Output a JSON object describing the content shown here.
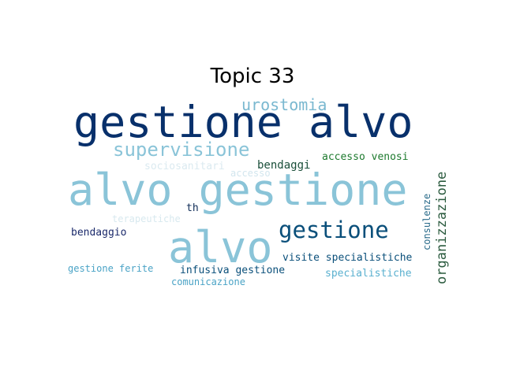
{
  "title": "Topic 33",
  "words": [
    {
      "text": "gestione alvo",
      "color": "#08306b"
    },
    {
      "text": "alvo gestione",
      "color": "#8ac4d8"
    },
    {
      "text": "alvo",
      "color": "#8ac4d8"
    },
    {
      "text": "gestione",
      "color": "#0a4f7a"
    },
    {
      "text": "supervisione",
      "color": "#8ac4d8"
    },
    {
      "text": "urostomia",
      "color": "#7ab8d0"
    },
    {
      "text": "organizzazione",
      "color": "#2b5b3f"
    },
    {
      "text": "accesso venosi",
      "color": "#1d7a2e"
    },
    {
      "text": "bendaggi",
      "color": "#1a4f3a"
    },
    {
      "text": "sociosanitari",
      "color": "#dbeaf0"
    },
    {
      "text": "accesso",
      "color": "#d2e6ee"
    },
    {
      "text": "consulenze",
      "color": "#2a6b8a"
    },
    {
      "text": "th",
      "color": "#0d2a55"
    },
    {
      "text": "terapeutiche",
      "color": "#d8e9ef"
    },
    {
      "text": "bendaggio",
      "color": "#1b2a6b"
    },
    {
      "text": "visite specialistiche",
      "color": "#0a4f7a"
    },
    {
      "text": "gestione ferite",
      "color": "#4aa3c6"
    },
    {
      "text": "infusiva gestione",
      "color": "#0a4f7a"
    },
    {
      "text": "specialistiche",
      "color": "#5ab0cf"
    },
    {
      "text": "comunicazione",
      "color": "#4aa3c6"
    }
  ]
}
